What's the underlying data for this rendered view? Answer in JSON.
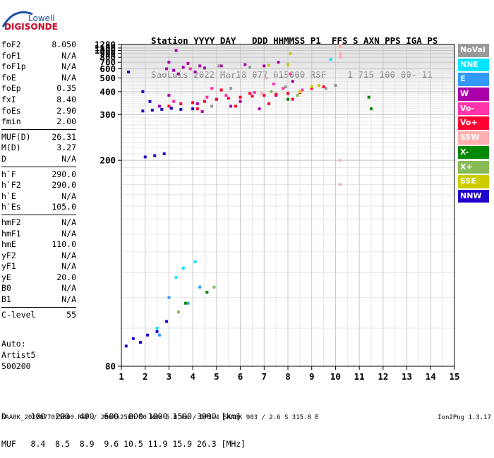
{
  "logo": {
    "brand": "Lowell",
    "product": "DIGISONDE"
  },
  "header": {
    "line1": "Station YYYY DAY   DDD HHMMSS P1  FFS S AXN PPS IGA PS",
    "line2": "SaoLuis 2022 Mar18 077 015000 RSF    1 715 100 00- 11"
  },
  "params": {
    "group1": [
      {
        "name": "foF2",
        "value": "8.050"
      },
      {
        "name": "foF1",
        "value": "N/A"
      },
      {
        "name": "foF1p",
        "value": "N/A"
      },
      {
        "name": "foE",
        "value": "N/A"
      },
      {
        "name": "foEp",
        "value": "0.35"
      },
      {
        "name": "fxI",
        "value": "8.40"
      },
      {
        "name": "foEs",
        "value": "2.90"
      },
      {
        "name": "fmin",
        "value": "2.00"
      }
    ],
    "group2": [
      {
        "name": "MUF(D)",
        "value": "26.31"
      },
      {
        "name": "M(D)",
        "value": "3.27"
      },
      {
        "name": "D",
        "value": "N/A"
      }
    ],
    "group3": [
      {
        "name": "h`F",
        "value": "290.0"
      },
      {
        "name": "h`F2",
        "value": "290.0"
      },
      {
        "name": "h`E",
        "value": "N/A"
      },
      {
        "name": "h`Es",
        "value": "105.0"
      }
    ],
    "group4": [
      {
        "name": "hmF2",
        "value": "N/A"
      },
      {
        "name": "hmF1",
        "value": "N/A"
      },
      {
        "name": "hmE",
        "value": "110.0"
      },
      {
        "name": "yF2",
        "value": "N/A"
      },
      {
        "name": "yF1",
        "value": "N/A"
      },
      {
        "name": "yE",
        "value": "20.0"
      },
      {
        "name": "B0",
        "value": "N/A"
      },
      {
        "name": "B1",
        "value": "N/A"
      }
    ],
    "group5": [
      {
        "name": "C-level",
        "value": "55"
      }
    ]
  },
  "auto": {
    "line1": "Auto:",
    "line2": "Artist5",
    "line3": "500200"
  },
  "legend": [
    {
      "label": "NoVal",
      "color": "#999999"
    },
    {
      "label": "NNE",
      "color": "#00e5ff"
    },
    {
      "label": "E",
      "color": "#3399ff"
    },
    {
      "label": "W",
      "color": "#aa00aa"
    },
    {
      "label": "Vo-",
      "color": "#ff33aa"
    },
    {
      "label": "Vo+",
      "color": "#ff0033"
    },
    {
      "label": "SSW",
      "color": "#ffb0b0"
    },
    {
      "label": "X-",
      "color": "#008800"
    },
    {
      "label": "X+",
      "color": "#88bb55"
    },
    {
      "label": "SSE",
      "color": "#cccc00"
    },
    {
      "label": "NNW",
      "color": "#2200cc"
    }
  ],
  "dmuf": {
    "d_row": "D     100  200  400  600  800 1000 1500 3000 [km]",
    "muf_row": "MUF   8.4  8.5  8.9  9.6 10.5 11.9 15.9 26.3 [MHz]"
  },
  "footer": "SAA0K_2022077015000.RSF / 280fx256h 50 kHz 5.0 km / DPS-4 SAA0K 903 / 2.6 S 315.8 E",
  "version": "Ion2Png 1.3.17",
  "chart_data": {
    "type": "scatter",
    "xlim": [
      1,
      15
    ],
    "ylim": [
      80,
      1280
    ],
    "xticks": [
      1,
      2,
      3,
      4,
      5,
      6,
      7,
      8,
      9,
      10,
      11,
      12,
      13,
      14,
      15
    ],
    "yticks": [
      80,
      200,
      300,
      400,
      500,
      600,
      700,
      800,
      900,
      1000,
      1100,
      1280
    ],
    "ytick_scale": "reciprocal",
    "grid": true,
    "series": [
      {
        "name": "NNW",
        "color": "#2200cc",
        "points": [
          [
            1.2,
            85
          ],
          [
            1.5,
            87
          ],
          [
            1.8,
            86
          ],
          [
            2.1,
            88
          ],
          [
            2.5,
            89
          ],
          [
            2.9,
            92
          ],
          [
            2.0,
            205
          ],
          [
            2.4,
            207
          ],
          [
            2.8,
            210
          ],
          [
            1.9,
            312
          ],
          [
            2.3,
            315
          ],
          [
            2.7,
            318
          ],
          [
            3.1,
            322
          ],
          [
            3.5,
            318
          ],
          [
            2.2,
            350
          ],
          [
            1.9,
            400
          ],
          [
            2.6,
            330
          ],
          [
            4.0,
            320
          ],
          [
            1.3,
            560
          ]
        ]
      },
      {
        "name": "W",
        "color": "#aa00aa",
        "points": [
          [
            2.9,
            600
          ],
          [
            3.2,
            580
          ],
          [
            3.6,
            620
          ],
          [
            4.1,
            560
          ],
          [
            4.5,
            610
          ],
          [
            3.0,
            700
          ],
          [
            3.8,
            680
          ],
          [
            4.3,
            640
          ],
          [
            3.4,
            540
          ],
          [
            5.2,
            640
          ],
          [
            6.2,
            660
          ],
          [
            7.0,
            640
          ],
          [
            7.6,
            700
          ],
          [
            5.6,
            330
          ],
          [
            4.2,
            340
          ],
          [
            5.0,
            360
          ],
          [
            6.0,
            350
          ],
          [
            7.5,
            380
          ],
          [
            8.2,
            470
          ],
          [
            3.0,
            380
          ],
          [
            2.6,
            330
          ],
          [
            4.4,
            310
          ],
          [
            6.8,
            320
          ],
          [
            3.3,
            1000
          ]
        ]
      },
      {
        "name": "Vo+",
        "color": "#ff0033",
        "points": [
          [
            3.0,
            330
          ],
          [
            3.5,
            340
          ],
          [
            4.0,
            345
          ],
          [
            4.5,
            350
          ],
          [
            5.0,
            360
          ],
          [
            5.5,
            365
          ],
          [
            6.0,
            370
          ],
          [
            6.5,
            375
          ],
          [
            7.0,
            380
          ],
          [
            7.5,
            385
          ],
          [
            8.0,
            390
          ],
          [
            8.5,
            395
          ],
          [
            9.0,
            420
          ],
          [
            9.5,
            430
          ],
          [
            4.2,
            320
          ],
          [
            5.8,
            330
          ],
          [
            7.2,
            340
          ],
          [
            8.2,
            360
          ],
          [
            6.4,
            390
          ],
          [
            5.2,
            410
          ]
        ]
      },
      {
        "name": "Vo-",
        "color": "#ff33aa",
        "points": [
          [
            3.2,
            350
          ],
          [
            4.6,
            370
          ],
          [
            6.6,
            395
          ],
          [
            7.8,
            420
          ],
          [
            8.6,
            410
          ],
          [
            3.9,
            600
          ],
          [
            4.8,
            420
          ],
          [
            8.1,
            540
          ],
          [
            7.4,
            450
          ],
          [
            5.4,
            380
          ]
        ]
      },
      {
        "name": "NNE",
        "color": "#00e5ff",
        "points": [
          [
            2.5,
            90
          ],
          [
            3.3,
            108
          ],
          [
            3.6,
            112
          ],
          [
            4.1,
            115
          ],
          [
            9.8,
            750
          ]
        ]
      },
      {
        "name": "E",
        "color": "#3399ff",
        "points": [
          [
            3.0,
            100
          ],
          [
            3.8,
            98
          ],
          [
            4.3,
            104
          ],
          [
            2.6,
            88
          ]
        ]
      },
      {
        "name": "X-",
        "color": "#008800",
        "points": [
          [
            3.7,
            98
          ],
          [
            4.6,
            102
          ],
          [
            11.4,
            370
          ],
          [
            11.5,
            320
          ],
          [
            8.0,
            360
          ]
        ]
      },
      {
        "name": "X+",
        "color": "#88bb55",
        "points": [
          [
            3.4,
            95
          ],
          [
            4.9,
            104
          ],
          [
            7.3,
            400
          ],
          [
            8.4,
            380
          ]
        ]
      },
      {
        "name": "SSE",
        "color": "#cccc00",
        "points": [
          [
            9.0,
            430
          ],
          [
            8.0,
            660
          ],
          [
            7.2,
            650
          ],
          [
            8.5,
            400
          ],
          [
            9.3,
            440
          ],
          [
            8.1,
            900
          ]
        ]
      },
      {
        "name": "SSW",
        "color": "#ffb0b0",
        "points": [
          [
            10.2,
            170
          ],
          [
            10.2,
            200
          ],
          [
            10.2,
            800
          ],
          [
            10.2,
            860
          ],
          [
            10.2,
            900
          ],
          [
            10.2,
            1240
          ],
          [
            10.2,
            1180
          ],
          [
            6.9,
            390
          ],
          [
            7.1,
            500
          ]
        ]
      },
      {
        "name": "NoVal",
        "color": "#999999",
        "points": [
          [
            5.1,
            640
          ],
          [
            6.4,
            620
          ],
          [
            5.6,
            420
          ],
          [
            7.9,
            430
          ],
          [
            9.6,
            420
          ],
          [
            10.0,
            440
          ],
          [
            4.8,
            330
          ]
        ]
      }
    ]
  }
}
